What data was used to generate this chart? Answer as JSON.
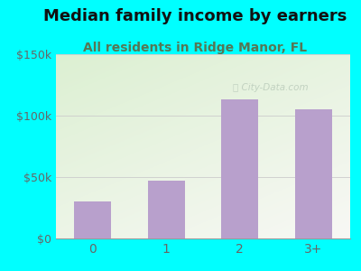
{
  "title": "Median family income by earners",
  "subtitle": "All residents in Ridge Manor, FL",
  "categories": [
    "0",
    "1",
    "2",
    "3+"
  ],
  "values": [
    30000,
    47000,
    113000,
    105000
  ],
  "bar_color": "#b8a0cc",
  "ylim": [
    0,
    150000
  ],
  "yticks": [
    0,
    50000,
    100000,
    150000
  ],
  "ytick_labels": [
    "$0",
    "$50k",
    "$100k",
    "$150k"
  ],
  "title_fontsize": 13,
  "subtitle_fontsize": 10,
  "title_color": "#111111",
  "subtitle_color": "#557755",
  "tick_color": "#666666",
  "bg_outer": "#00ffff",
  "watermark": "ⓘ City-Data.com",
  "watermark_color": "#bbccbb",
  "grid_color": "#cccccc"
}
